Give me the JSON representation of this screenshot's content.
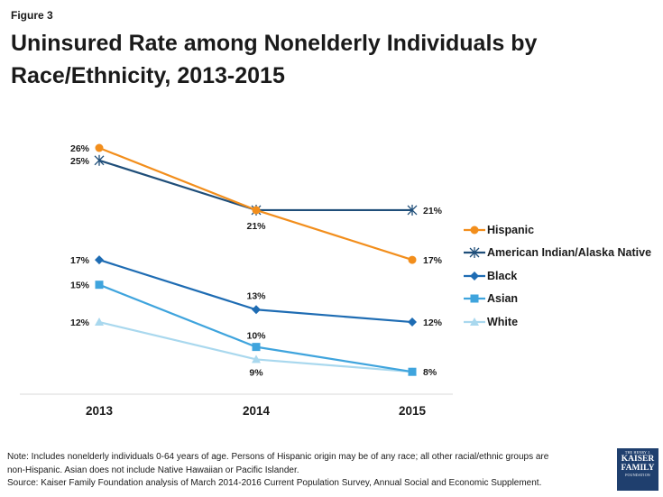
{
  "figure_label": "Figure 3",
  "title": "Uninsured Rate among Nonelderly Individuals by Race/Ethnicity, 2013-2015",
  "notes": {
    "line1": "Note: Includes nonelderly individuals 0-64 years of age. Persons of Hispanic origin may be of any race; all other racial/ethnic groups are",
    "line2": "non-Hispanic. Asian does not include Native Hawaiian or Pacific Islander.",
    "line3": "Source: Kaiser Family Foundation  analysis of March 2014-2016 Current Population Survey, Annual Social and Economic Supplement."
  },
  "logo": {
    "top": "THE HENRY J.",
    "name1": "KAISER",
    "name2": "FAMILY",
    "bottom": "FOUNDATION"
  },
  "chart_data": {
    "type": "line",
    "categories": [
      "2013",
      "2014",
      "2015"
    ],
    "ylim": [
      0,
      28
    ],
    "grid": false,
    "legend_position": "right",
    "series": [
      {
        "name": "Hispanic",
        "values": [
          26,
          21,
          17
        ],
        "labels": [
          "26%",
          "",
          "17%"
        ],
        "color": "#f28e1c",
        "marker": "circle"
      },
      {
        "name": "American Indian/Alaska Native",
        "values": [
          25,
          21,
          21
        ],
        "labels": [
          "25%",
          "21%",
          "21%"
        ],
        "color": "#1f4e79",
        "marker": "asterisk"
      },
      {
        "name": "Black",
        "values": [
          17,
          13,
          12
        ],
        "labels": [
          "17%",
          "13%",
          "12%"
        ],
        "color": "#1e6cb3",
        "marker": "diamond"
      },
      {
        "name": "Asian",
        "values": [
          15,
          10,
          8
        ],
        "labels": [
          "15%",
          "10%",
          "8%"
        ],
        "color": "#3fa4dd",
        "marker": "square"
      },
      {
        "name": "White",
        "values": [
          12,
          9,
          8
        ],
        "labels": [
          "12%",
          "9%",
          ""
        ],
        "color": "#a9d8ee",
        "marker": "triangle"
      }
    ]
  }
}
